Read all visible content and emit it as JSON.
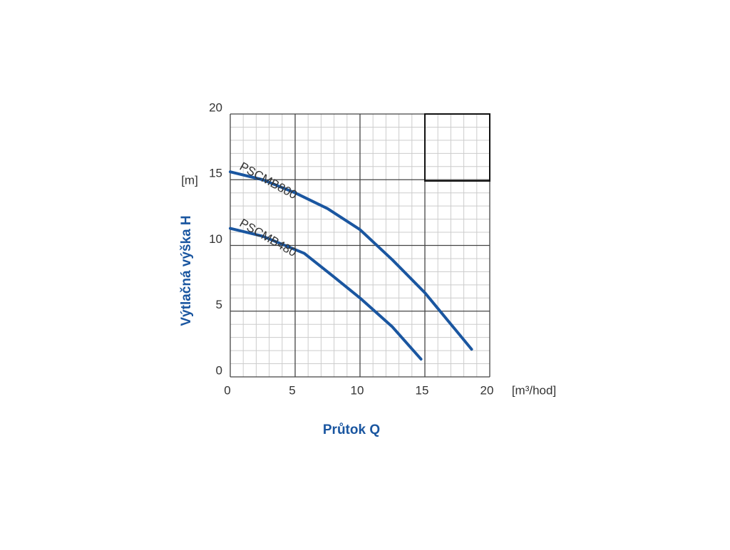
{
  "chart_data": {
    "type": "line",
    "x_label": "Průtok Q",
    "y_label": "Výtlačná výška H",
    "x_unit": "[m³/hod]",
    "y_unit": "[m]",
    "xlim": [
      0,
      20
    ],
    "ylim": [
      0,
      20
    ],
    "xticks": [
      0,
      5,
      10,
      15,
      20
    ],
    "yticks": [
      0,
      5,
      10,
      15,
      20
    ],
    "grid": true,
    "series": [
      {
        "name": "PSCMB800",
        "color": "#1a56a0",
        "x": [
          0,
          2.5,
          5,
          7.5,
          10,
          12.5,
          15,
          18.6
        ],
        "values": [
          15.6,
          15.0,
          14.0,
          12.8,
          11.2,
          8.9,
          6.4,
          2.1
        ]
      },
      {
        "name": "PSCMB480",
        "color": "#1a56a0",
        "x": [
          0,
          2.5,
          5.7,
          8,
          10,
          12.5,
          14.7
        ],
        "values": [
          11.3,
          10.7,
          9.4,
          7.6,
          6.0,
          3.8,
          1.35
        ]
      }
    ]
  }
}
